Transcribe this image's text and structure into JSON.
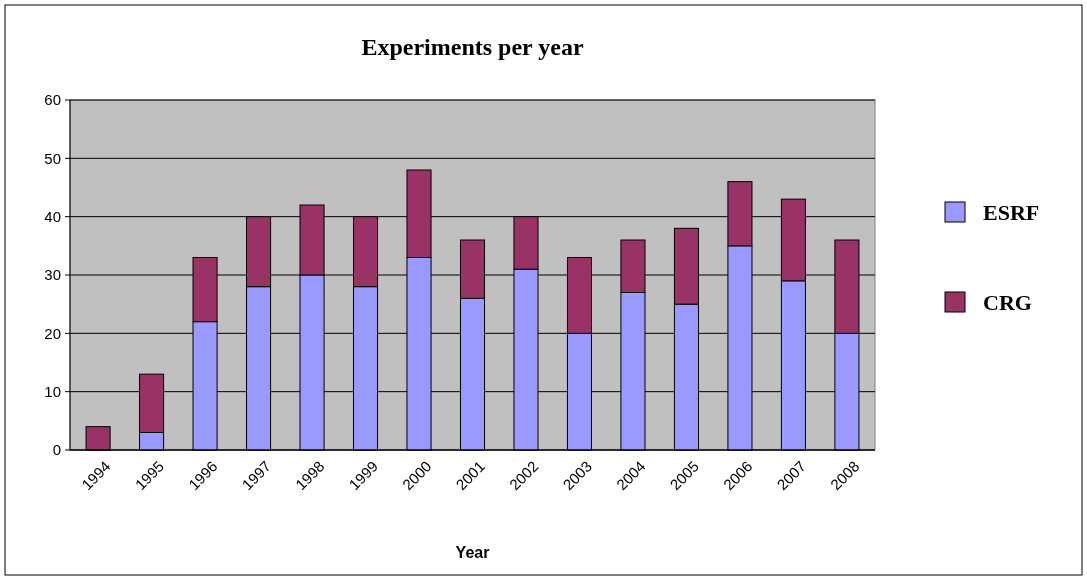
{
  "chart_data": {
    "type": "bar",
    "title": "Experiments per year",
    "xlabel": "Year",
    "stacked": true,
    "categories": [
      "1994",
      "1995",
      "1996",
      "1997",
      "1998",
      "1999",
      "2000",
      "2001",
      "2002",
      "2003",
      "2004",
      "2005",
      "2006",
      "2007",
      "2008"
    ],
    "series": [
      {
        "name": "ESRF",
        "color": "#9999ff",
        "values": [
          0,
          3,
          22,
          28,
          30,
          28,
          33,
          26,
          31,
          20,
          27,
          25,
          35,
          29,
          20
        ]
      },
      {
        "name": "CRG",
        "color": "#993366",
        "values": [
          4,
          10,
          11,
          12,
          12,
          12,
          15,
          10,
          9,
          13,
          9,
          13,
          11,
          14,
          16
        ]
      }
    ],
    "ylim": [
      0,
      60
    ],
    "yticks": [
      0,
      10,
      20,
      30,
      40,
      50,
      60
    ],
    "grid": "y",
    "legend": "right"
  }
}
